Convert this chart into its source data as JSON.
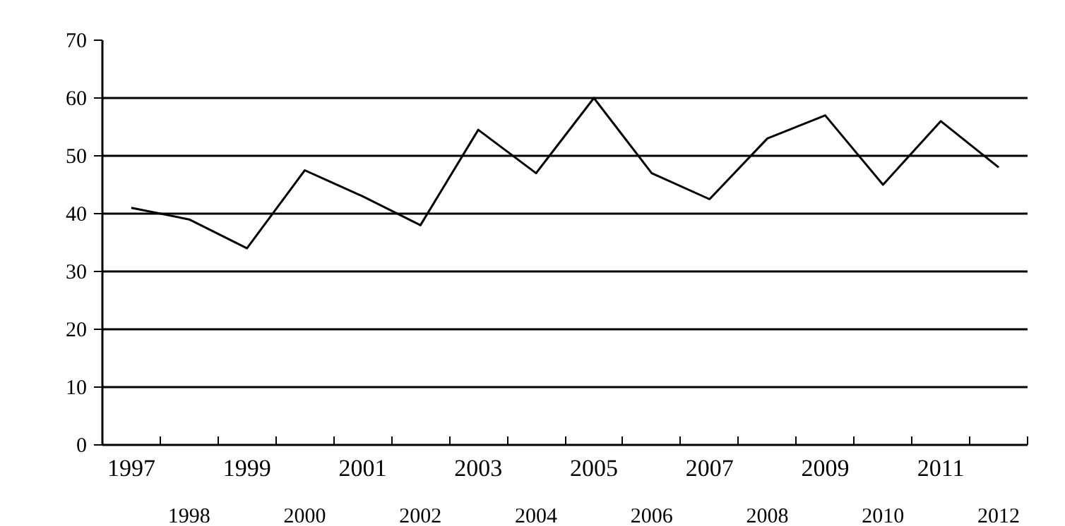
{
  "chart_data": {
    "type": "line",
    "categories": [
      "1997",
      "1998",
      "1999",
      "2000",
      "2001",
      "2002",
      "2003",
      "2004",
      "2005",
      "2006",
      "2007",
      "2008",
      "2009",
      "2010",
      "2011",
      "2012"
    ],
    "series": [
      {
        "color": "#000000",
        "values": [
          41,
          39,
          34,
          47.5,
          43,
          38,
          54.5,
          47,
          60,
          47,
          42.5,
          53,
          57,
          45,
          56,
          48
        ]
      }
    ],
    "ylim": [
      0,
      70
    ],
    "yticks": [
      0,
      10,
      20,
      30,
      40,
      50,
      60,
      70
    ],
    "grid": "y",
    "marker": "none",
    "line_style": "solid"
  }
}
